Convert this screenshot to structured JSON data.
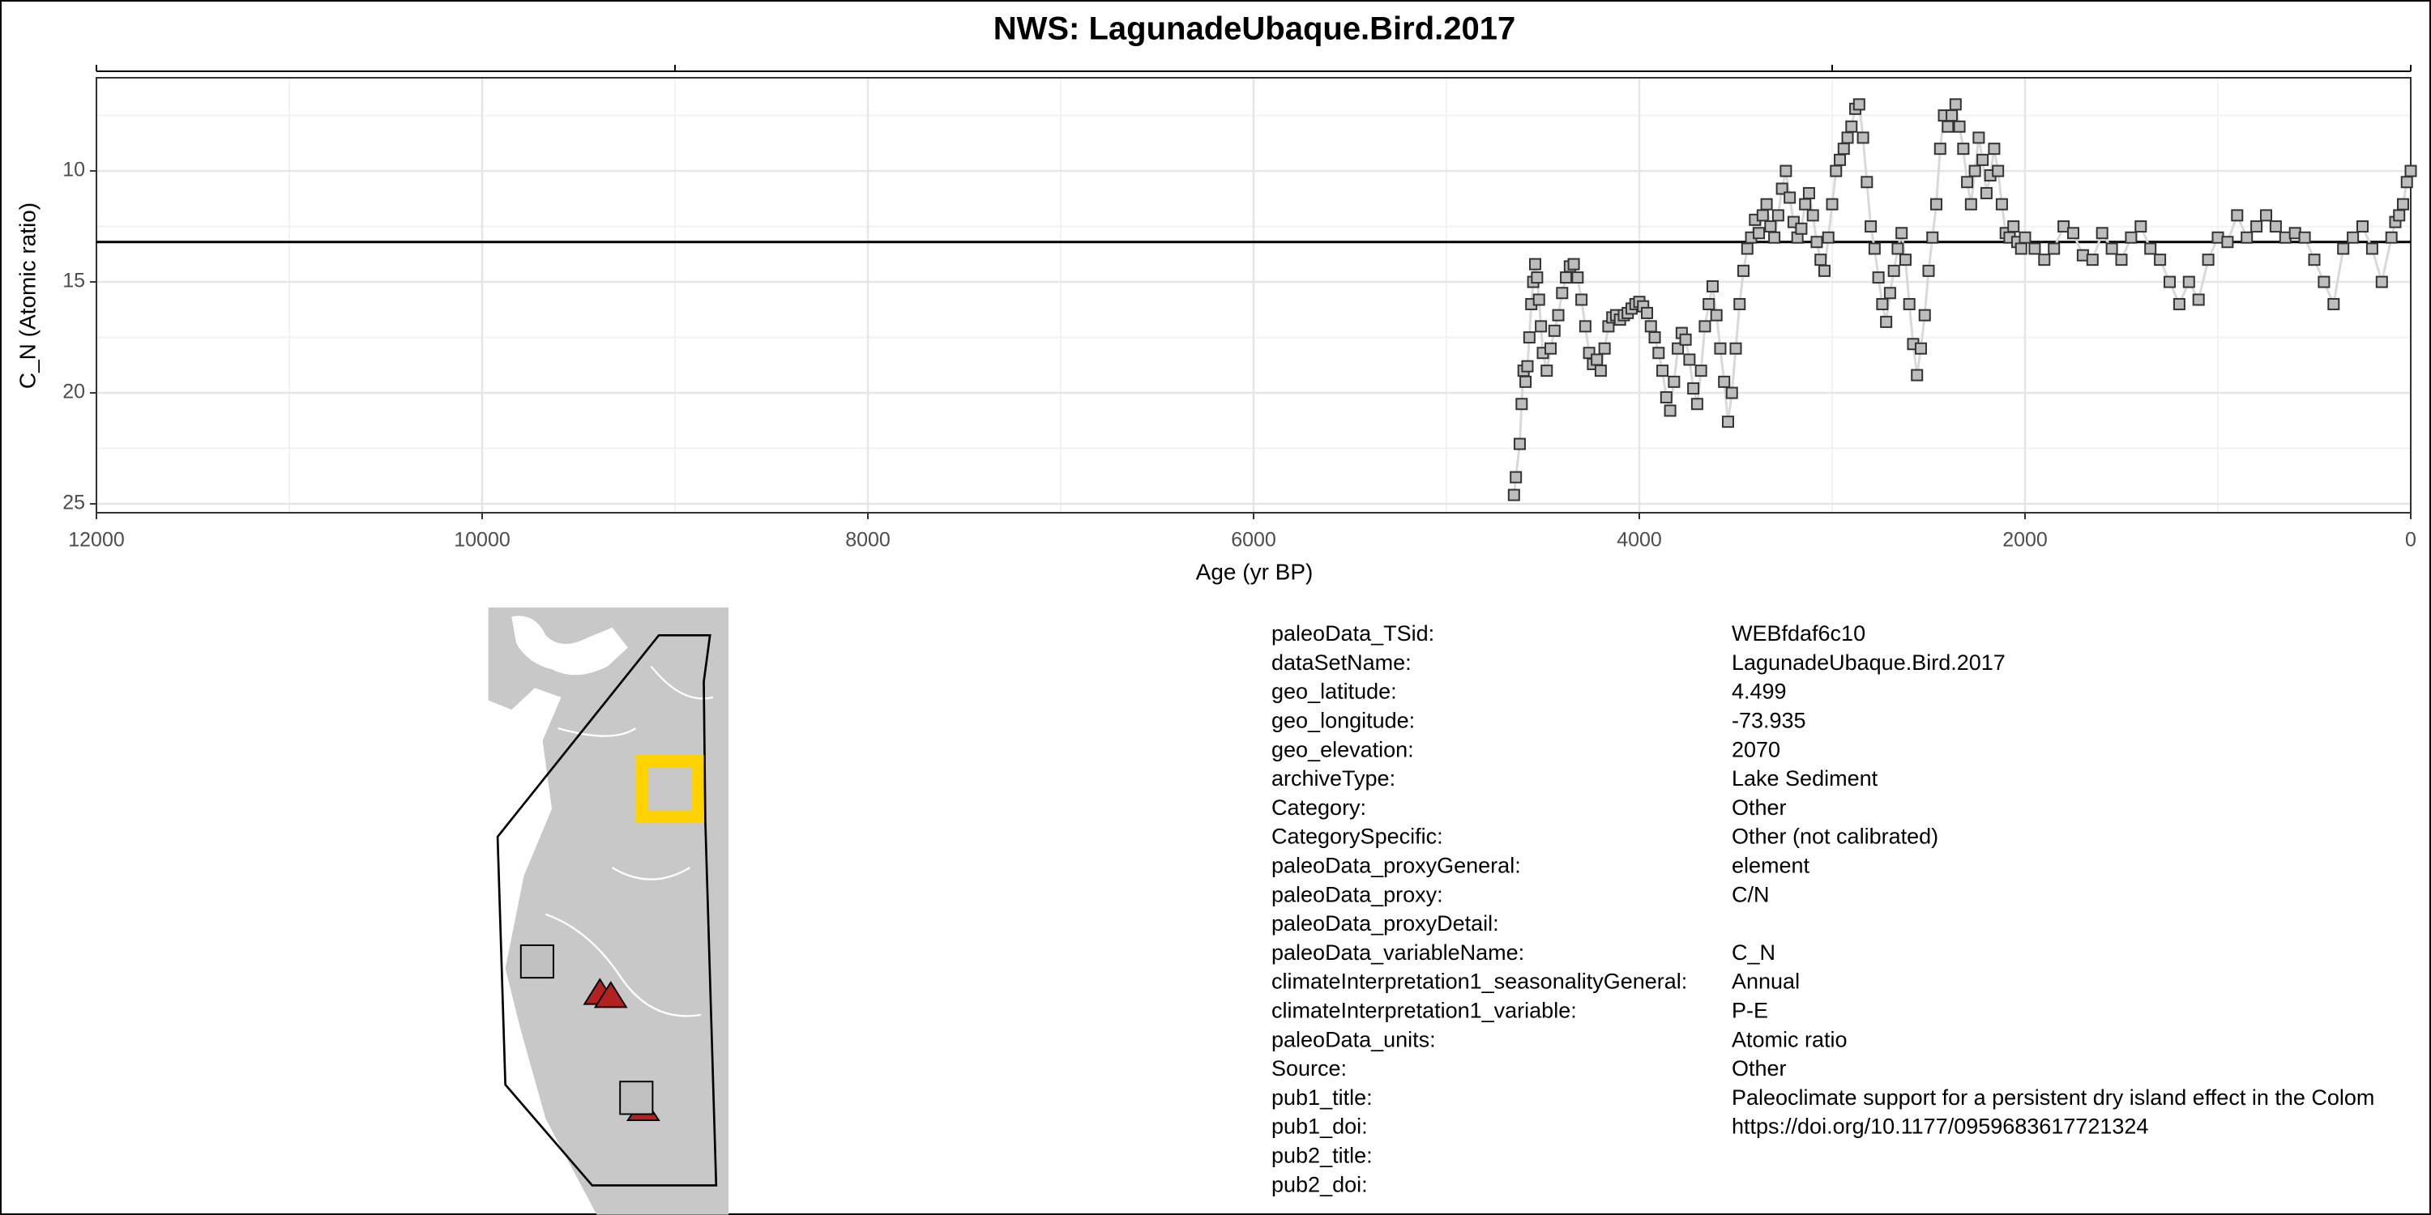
{
  "chart_data": {
    "type": "scatter",
    "title": "NWS: LagunadeUbaque.Bird.2017",
    "x_label": "Age (yr BP)",
    "y_label": "C_N (Atomic ratio)",
    "xlim": [
      12000,
      0
    ],
    "ylim": [
      25.4,
      5.8
    ],
    "xticks": [
      12000,
      10000,
      8000,
      6000,
      4000,
      2000,
      0
    ],
    "xminor_ticks": [
      11000,
      9000,
      7000,
      5000,
      3000,
      1000
    ],
    "top_ticks": [
      12000,
      9000,
      3000,
      0
    ],
    "yticks": [
      10,
      15,
      20,
      25
    ],
    "yminor_ticks": [
      7.5,
      12.5,
      17.5,
      22.5
    ],
    "grid": true,
    "reference_line": 13.2,
    "color": "#bdbdbd",
    "line_color": "#d9d9d9",
    "x": [
      4650,
      4640,
      4620,
      4610,
      4600,
      4590,
      4580,
      4570,
      4560,
      4550,
      4540,
      4530,
      4520,
      4510,
      4500,
      4480,
      4460,
      4440,
      4420,
      4400,
      4380,
      4360,
      4340,
      4320,
      4300,
      4280,
      4260,
      4240,
      4220,
      4200,
      4180,
      4160,
      4140,
      4120,
      4100,
      4080,
      4060,
      4040,
      4020,
      4000,
      3980,
      3960,
      3940,
      3920,
      3900,
      3880,
      3860,
      3840,
      3820,
      3800,
      3780,
      3760,
      3740,
      3720,
      3700,
      3680,
      3660,
      3640,
      3620,
      3600,
      3580,
      3560,
      3540,
      3520,
      3500,
      3480,
      3460,
      3440,
      3420,
      3400,
      3380,
      3360,
      3340,
      3320,
      3300,
      3280,
      3260,
      3240,
      3220,
      3200,
      3180,
      3160,
      3140,
      3120,
      3100,
      3080,
      3060,
      3040,
      3020,
      3000,
      2980,
      2960,
      2940,
      2920,
      2900,
      2880,
      2860,
      2840,
      2820,
      2800,
      2780,
      2760,
      2740,
      2720,
      2700,
      2680,
      2660,
      2640,
      2620,
      2600,
      2580,
      2560,
      2540,
      2520,
      2500,
      2480,
      2460,
      2440,
      2420,
      2400,
      2380,
      2360,
      2340,
      2320,
      2300,
      2280,
      2260,
      2240,
      2220,
      2200,
      2180,
      2160,
      2140,
      2120,
      2100,
      2080,
      2060,
      2040,
      2020,
      2000,
      1950,
      1900,
      1850,
      1800,
      1750,
      1700,
      1650,
      1600,
      1550,
      1500,
      1450,
      1400,
      1350,
      1300,
      1250,
      1200,
      1150,
      1100,
      1050,
      1000,
      950,
      900,
      850,
      800,
      750,
      700,
      650,
      600,
      550,
      500,
      450,
      400,
      350,
      300,
      250,
      200,
      150,
      100,
      80,
      60,
      40,
      20,
      0
    ],
    "values": [
      24.6,
      23.8,
      22.3,
      20.5,
      19.0,
      19.5,
      18.8,
      17.5,
      16.0,
      15.0,
      14.2,
      14.8,
      15.8,
      17.0,
      18.2,
      19.0,
      18.0,
      17.2,
      16.5,
      15.5,
      14.8,
      14.3,
      14.2,
      14.8,
      15.8,
      17.0,
      18.2,
      18.7,
      18.5,
      19.0,
      18.0,
      17.0,
      16.6,
      16.5,
      16.7,
      16.5,
      16.4,
      16.2,
      16.0,
      15.9,
      16.1,
      16.4,
      17.0,
      17.5,
      18.2,
      19.0,
      20.2,
      20.8,
      19.5,
      18.0,
      17.3,
      17.6,
      18.5,
      19.8,
      20.5,
      19.0,
      17.0,
      16.0,
      15.2,
      16.5,
      18.0,
      19.5,
      21.3,
      20.0,
      18.0,
      16.0,
      14.5,
      13.5,
      13.0,
      12.2,
      12.8,
      12.0,
      11.5,
      12.5,
      13.0,
      12.0,
      10.8,
      10.0,
      11.2,
      12.3,
      13.0,
      12.6,
      11.5,
      11.0,
      12.0,
      13.2,
      14.0,
      14.5,
      13.0,
      11.5,
      10.0,
      9.5,
      9.0,
      8.5,
      8.0,
      7.2,
      7.0,
      8.5,
      10.5,
      12.5,
      13.5,
      14.8,
      16.0,
      16.8,
      15.5,
      14.5,
      13.5,
      12.8,
      14.0,
      16.0,
      17.8,
      19.2,
      18.0,
      16.5,
      14.5,
      13.0,
      11.5,
      9.0,
      7.5,
      8.0,
      7.5,
      7.0,
      8.0,
      9.0,
      10.5,
      11.5,
      10.0,
      8.5,
      9.5,
      11.0,
      10.2,
      9.0,
      10.0,
      11.5,
      12.8,
      13.0,
      12.5,
      13.2,
      13.5,
      13.0,
      13.5,
      14.0,
      13.5,
      12.5,
      12.8,
      13.8,
      14.0,
      12.8,
      13.5,
      14.0,
      13.0,
      12.5,
      13.5,
      14.0,
      15.0,
      16.0,
      15.0,
      15.8,
      14.0,
      13.0,
      13.2,
      12.0,
      13.0,
      12.5,
      12.0,
      12.5,
      13.0,
      12.8,
      13.0,
      14.0,
      15.0,
      16.0,
      13.5,
      13.0,
      12.5,
      13.5,
      15.0,
      13.0,
      12.3,
      12.0,
      11.5,
      10.5,
      10.0
    ]
  },
  "metadata": {
    "rows": [
      {
        "key": "paleoData_TSid:",
        "value": "WEBfdaf6c10"
      },
      {
        "key": "dataSetName:",
        "value": "LagunadeUbaque.Bird.2017"
      },
      {
        "key": "geo_latitude:",
        "value": "4.499"
      },
      {
        "key": "geo_longitude:",
        "value": "-73.935"
      },
      {
        "key": "geo_elevation:",
        "value": "2070"
      },
      {
        "key": "archiveType:",
        "value": "Lake Sediment"
      },
      {
        "key": "Category:",
        "value": "Other"
      },
      {
        "key": "CategorySpecific:",
        "value": "Other (not calibrated)"
      },
      {
        "key": "paleoData_proxyGeneral:",
        "value": "element"
      },
      {
        "key": "paleoData_proxy:",
        "value": "C/N"
      },
      {
        "key": "paleoData_proxyDetail:"
      },
      {
        "key": "paleoData_variableName:",
        "value": "C_N"
      },
      {
        "key": "climateInterpretation1_seasonalityGeneral:",
        "value": "Annual"
      },
      {
        "key": "climateInterpretation1_variable:",
        "value": "P-E"
      },
      {
        "key": "paleoData_units:",
        "value": "Atomic ratio"
      },
      {
        "key": "Source:",
        "value": "Other"
      },
      {
        "key": "pub1_title:",
        "value": "Paleoclimate support for a persistent dry island effect in the Colom"
      },
      {
        "key": "pub1_doi:",
        "value": "https://doi.org/10.1177/0959683617721324"
      },
      {
        "key": "pub2_title:"
      },
      {
        "key": "pub2_doi:"
      }
    ]
  }
}
